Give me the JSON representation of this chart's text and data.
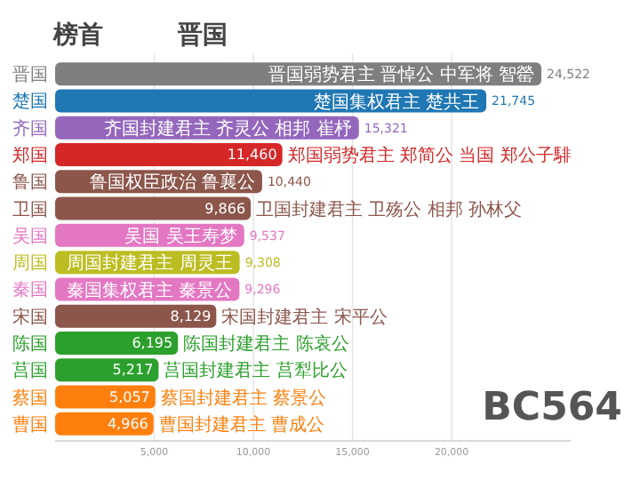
{
  "chart_data": {
    "type": "bar",
    "orientation": "horizontal",
    "title": "榜首",
    "subtitle": "晋国",
    "categories": [
      "晋国",
      "楚国",
      "齐国",
      "郑国",
      "鲁国",
      "卫国",
      "吴国",
      "周国",
      "秦国",
      "宋国",
      "陈国",
      "莒国",
      "蔡国",
      "曹国"
    ],
    "values": [
      24522,
      21745,
      15321,
      11460,
      10440,
      9866,
      9537,
      9308,
      9296,
      8129,
      6195,
      5217,
      5057,
      4966
    ],
    "value_labels": [
      "24,522",
      "21,745",
      "15,321",
      "11,460",
      "10,440",
      "9,866",
      "9,537",
      "9,308",
      "9,296",
      "8,129",
      "6,195",
      "5,217",
      "5,057",
      "4,966"
    ],
    "colors": [
      "#7f7f7f",
      "#1f77b4",
      "#9467bd",
      "#d62728",
      "#8c564b",
      "#8c564b",
      "#e377c2",
      "#bcbd22",
      "#e377c2",
      "#8c564b",
      "#2ca02c",
      "#2ca02c",
      "#ff7f0e",
      "#ff7f0e"
    ],
    "xlim": [
      0,
      26000
    ],
    "xticks": [
      {
        "value": 5000,
        "label": "5,000"
      },
      {
        "value": 10000,
        "label": "10,000"
      },
      {
        "value": 15000,
        "label": "15,000"
      },
      {
        "value": 20000,
        "label": "20,000"
      }
    ],
    "grid": "x",
    "annotations": [
      {
        "text": "晋国弱势君主 晋悼公 中军将 智罃",
        "x": 24522,
        "y": "晋国"
      },
      {
        "text": "楚国集权君主 楚共王",
        "x": 21745,
        "y": "楚国"
      },
      {
        "text": "齐国封建君主 齐灵公 相邦 崔杼",
        "x": 15321,
        "y": "齐国"
      },
      {
        "text": "郑国弱势君主 郑简公 当国 郑公子騑",
        "x": 11460,
        "y": "郑国"
      },
      {
        "text": "鲁国权臣政治 鲁襄公",
        "x": 10440,
        "y": "鲁国"
      },
      {
        "text": "卫国封建君主 卫殇公 相邦 孙林父",
        "x": 9866,
        "y": "卫国"
      },
      {
        "text": "吴国 吴王寿梦",
        "x": 9537,
        "y": "吴国"
      },
      {
        "text": "周国封建君主 周灵王",
        "x": 9308,
        "y": "周国"
      },
      {
        "text": "秦国集权君主 秦景公",
        "x": 9296,
        "y": "秦国"
      },
      {
        "text": "宋国封建君主 宋平公",
        "x": 8129,
        "y": "宋国"
      },
      {
        "text": "陈国封建君主 陈哀公",
        "x": 6195,
        "y": "陈国"
      },
      {
        "text": "莒国封建君主 莒犁比公",
        "x": 5217,
        "y": "莒国"
      },
      {
        "text": "蔡国封建君主 蔡景公",
        "x": 5057,
        "y": "蔡国"
      },
      {
        "text": "曹国封建君主 曹成公",
        "x": 4966,
        "y": "曹国"
      },
      "BC564"
    ]
  }
}
